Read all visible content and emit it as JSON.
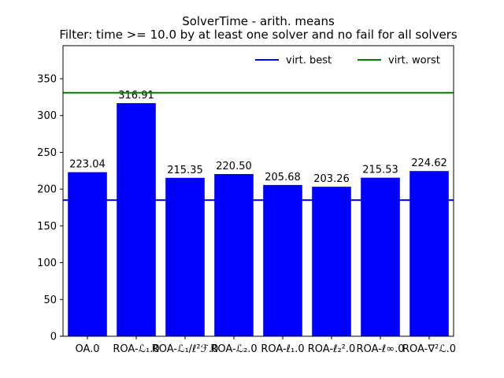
{
  "chart_data": {
    "type": "bar",
    "title": "SolverTime - arith. means",
    "subtitle": "Filter: time >= 10.0 by at least one solver and no fail for all solvers",
    "xlabel": "",
    "ylabel": "",
    "categories": [
      "OA.0",
      "ROA-ℒ₁.0",
      "ROA-ℒ₁/ℓ²ℱ.0",
      "ROA-ℒ₂.0",
      "ROA-ℓ₁.0",
      "ROA-ℓ₂².0",
      "ROA-ℓ∞.0",
      "ROA-∇²ℒ.0"
    ],
    "values": [
      223.04,
      316.91,
      215.35,
      220.5,
      205.68,
      203.26,
      215.53,
      224.62
    ],
    "value_labels": [
      "223.04",
      "316.91",
      "215.35",
      "220.50",
      "205.68",
      "203.26",
      "215.53",
      "224.62"
    ],
    "ylim": [
      0,
      395
    ],
    "yticks": [
      0,
      50,
      100,
      150,
      200,
      250,
      300,
      350
    ],
    "bar_color": "#0000ff",
    "reference_lines": [
      {
        "name": "virt. best",
        "value": 185,
        "color": "#0000ff"
      },
      {
        "name": "virt. worst",
        "value": 331,
        "color": "#008000"
      }
    ],
    "legend": {
      "placement": "top-right",
      "entries": [
        "virt. best",
        "virt. worst"
      ]
    },
    "grid": false
  }
}
